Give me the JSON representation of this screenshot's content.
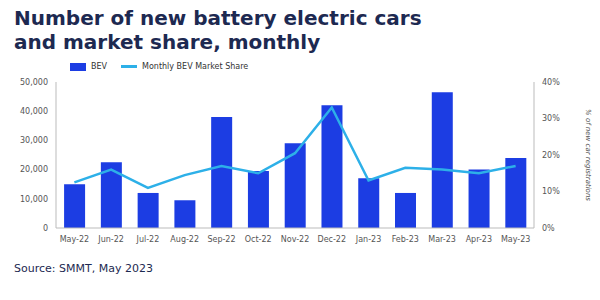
{
  "chart_data": {
    "type": "bar",
    "title": "Number of new battery electric cars and market share, monthly",
    "source": "Source: SMMT, May 2023",
    "y2label": "% of new car registrations",
    "categories": [
      "May-22",
      "Jun-22",
      "Jul-22",
      "Aug-22",
      "Sep-22",
      "Oct-22",
      "Nov-22",
      "Dec-22",
      "Jan-23",
      "Feb-23",
      "Mar-23",
      "Apr-23",
      "May-23"
    ],
    "series": [
      {
        "name": "BEV",
        "type": "bar",
        "color": "#1c3de3",
        "values": [
          15000,
          22500,
          12000,
          9500,
          38000,
          19500,
          29000,
          42000,
          17000,
          12000,
          46500,
          20000,
          24000
        ]
      },
      {
        "name": "Monthly BEV Market Share",
        "type": "line",
        "axis": "y2",
        "color": "#2db0e8",
        "values": [
          12.5,
          16,
          11,
          14.5,
          17,
          15,
          20.5,
          33,
          13,
          16.5,
          16,
          15,
          17
        ]
      }
    ],
    "ylim": [
      0,
      50000
    ],
    "yticks": [
      0,
      {
        "value": 10000,
        "label": "10,000"
      },
      {
        "value": 20000,
        "label": "20,000"
      },
      {
        "value": 30000,
        "label": "30,000"
      },
      {
        "value": 40000,
        "label": "40,000"
      },
      {
        "value": 50000,
        "label": "50,000"
      }
    ],
    "y2lim": [
      0,
      40
    ],
    "y2ticks": [
      {
        "value": 0,
        "label": "0%"
      },
      {
        "value": 10,
        "label": "10%"
      },
      {
        "value": 20,
        "label": "20%"
      },
      {
        "value": 30,
        "label": "30%"
      },
      {
        "value": 40,
        "label": "40%"
      }
    ],
    "grid": false
  }
}
